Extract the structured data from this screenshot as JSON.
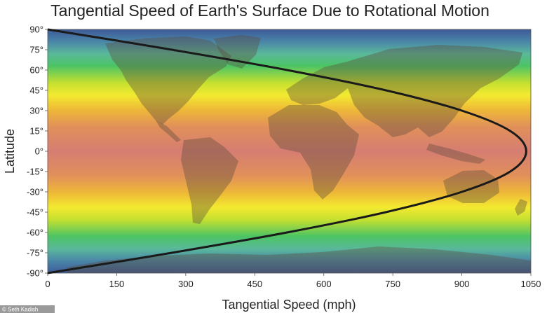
{
  "chart_data": {
    "type": "line",
    "title": "Tangential Speed of Earth's Surface Due to Rotational Motion",
    "xlabel": "Tangential Speed (mph)",
    "ylabel": "Latitude",
    "xlim": [
      0,
      1050
    ],
    "ylim": [
      -90,
      90
    ],
    "x_ticks": [
      "0",
      "150",
      "300",
      "450",
      "600",
      "750",
      "900",
      "1050"
    ],
    "y_ticks": [
      "90°",
      "75°",
      "60°",
      "45°",
      "30°",
      "15°",
      "0°",
      "-15°",
      "-30°",
      "-45°",
      "-60°",
      "-75°",
      "-90°"
    ],
    "series": [
      {
        "latitude": [
          -90,
          -75,
          -60,
          -45,
          -30,
          -15,
          0,
          15,
          30,
          45,
          60,
          75,
          90
        ],
        "speed_mph": [
          0,
          270,
          520,
          735,
          900,
          1005,
          1040,
          1005,
          900,
          735,
          520,
          270,
          0
        ]
      }
    ],
    "background": "world map with latitude color bands: blue at poles, green near ±70°, yellow near ±50°, orange near ±35°, red near the equator",
    "curve_color": "#1a1a1a",
    "grid": false
  },
  "credit": "© Seth Kadish"
}
